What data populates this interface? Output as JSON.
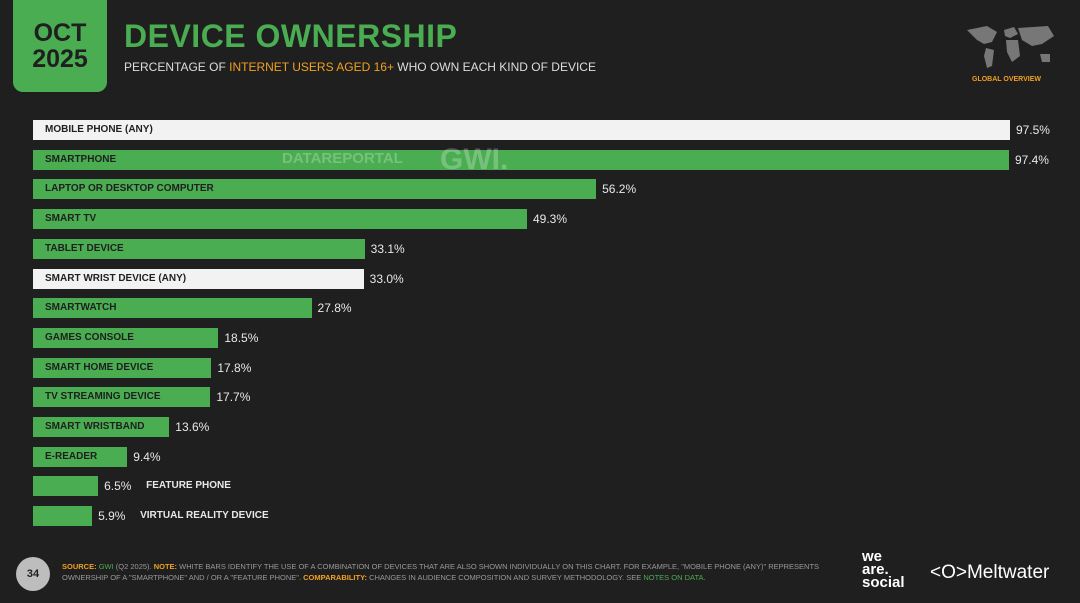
{
  "header": {
    "month": "OCT",
    "year": "2025",
    "title": "DEVICE OWNERSHIP",
    "subtitle_pre": "PERCENTAGE OF ",
    "subtitle_highlight": "INTERNET USERS AGED 16+",
    "subtitle_post": " WHO OWN EACH KIND OF DEVICE",
    "region_label": "GLOBAL OVERVIEW"
  },
  "watermark": {
    "datareportal": "DATAREPORTAL",
    "gwi": "GWI."
  },
  "chart_data": {
    "type": "bar",
    "orientation": "horizontal",
    "xlim": [
      0,
      100
    ],
    "unit": "%",
    "categories": [
      "MOBILE PHONE (ANY)",
      "SMARTPHONE",
      "LAPTOP OR DESKTOP COMPUTER",
      "SMART TV",
      "TABLET DEVICE",
      "SMART WRIST DEVICE (ANY)",
      "SMARTWATCH",
      "GAMES CONSOLE",
      "SMART HOME DEVICE",
      "TV STREAMING DEVICE",
      "SMART WRISTBAND",
      "E-READER",
      "FEATURE PHONE",
      "VIRTUAL REALITY DEVICE"
    ],
    "values": [
      97.5,
      97.4,
      56.2,
      49.3,
      33.1,
      33.0,
      27.8,
      18.5,
      17.8,
      17.7,
      13.6,
      9.4,
      6.5,
      5.9
    ],
    "value_labels": [
      "97.5%",
      "97.4%",
      "56.2%",
      "49.3%",
      "33.1%",
      "33.0%",
      "27.8%",
      "18.5%",
      "17.8%",
      "17.7%",
      "13.6%",
      "9.4%",
      "6.5%",
      "5.9%"
    ],
    "combination_bars": [
      true,
      false,
      false,
      false,
      false,
      true,
      false,
      false,
      false,
      false,
      false,
      false,
      false,
      false
    ],
    "colors": {
      "bar": "#4aad52",
      "combination_bar": "#f2f2f2"
    }
  },
  "footer": {
    "page": "34",
    "source_label": "SOURCE:",
    "source": "GWI",
    "source_rest": " (Q2 2025). ",
    "note_label": "NOTE:",
    "note": " WHITE BARS IDENTIFY THE USE OF A COMBINATION OF DEVICES THAT ARE ALSO SHOWN INDIVIDUALLY ON THIS CHART. FOR EXAMPLE, \"MOBILE PHONE (ANY)\" REPRESENTS OWNERSHIP OF A \"SMARTPHONE\" AND / OR A \"FEATURE PHONE\". ",
    "comparability_label": "COMPARABILITY:",
    "comparability": " CHANGES IN AUDIENCE COMPOSITION AND SURVEY METHODOLOGY. SEE ",
    "notes_link": "NOTES ON DATA",
    "logo_was": "we are. social",
    "logo_meltwater": "Meltwater"
  }
}
